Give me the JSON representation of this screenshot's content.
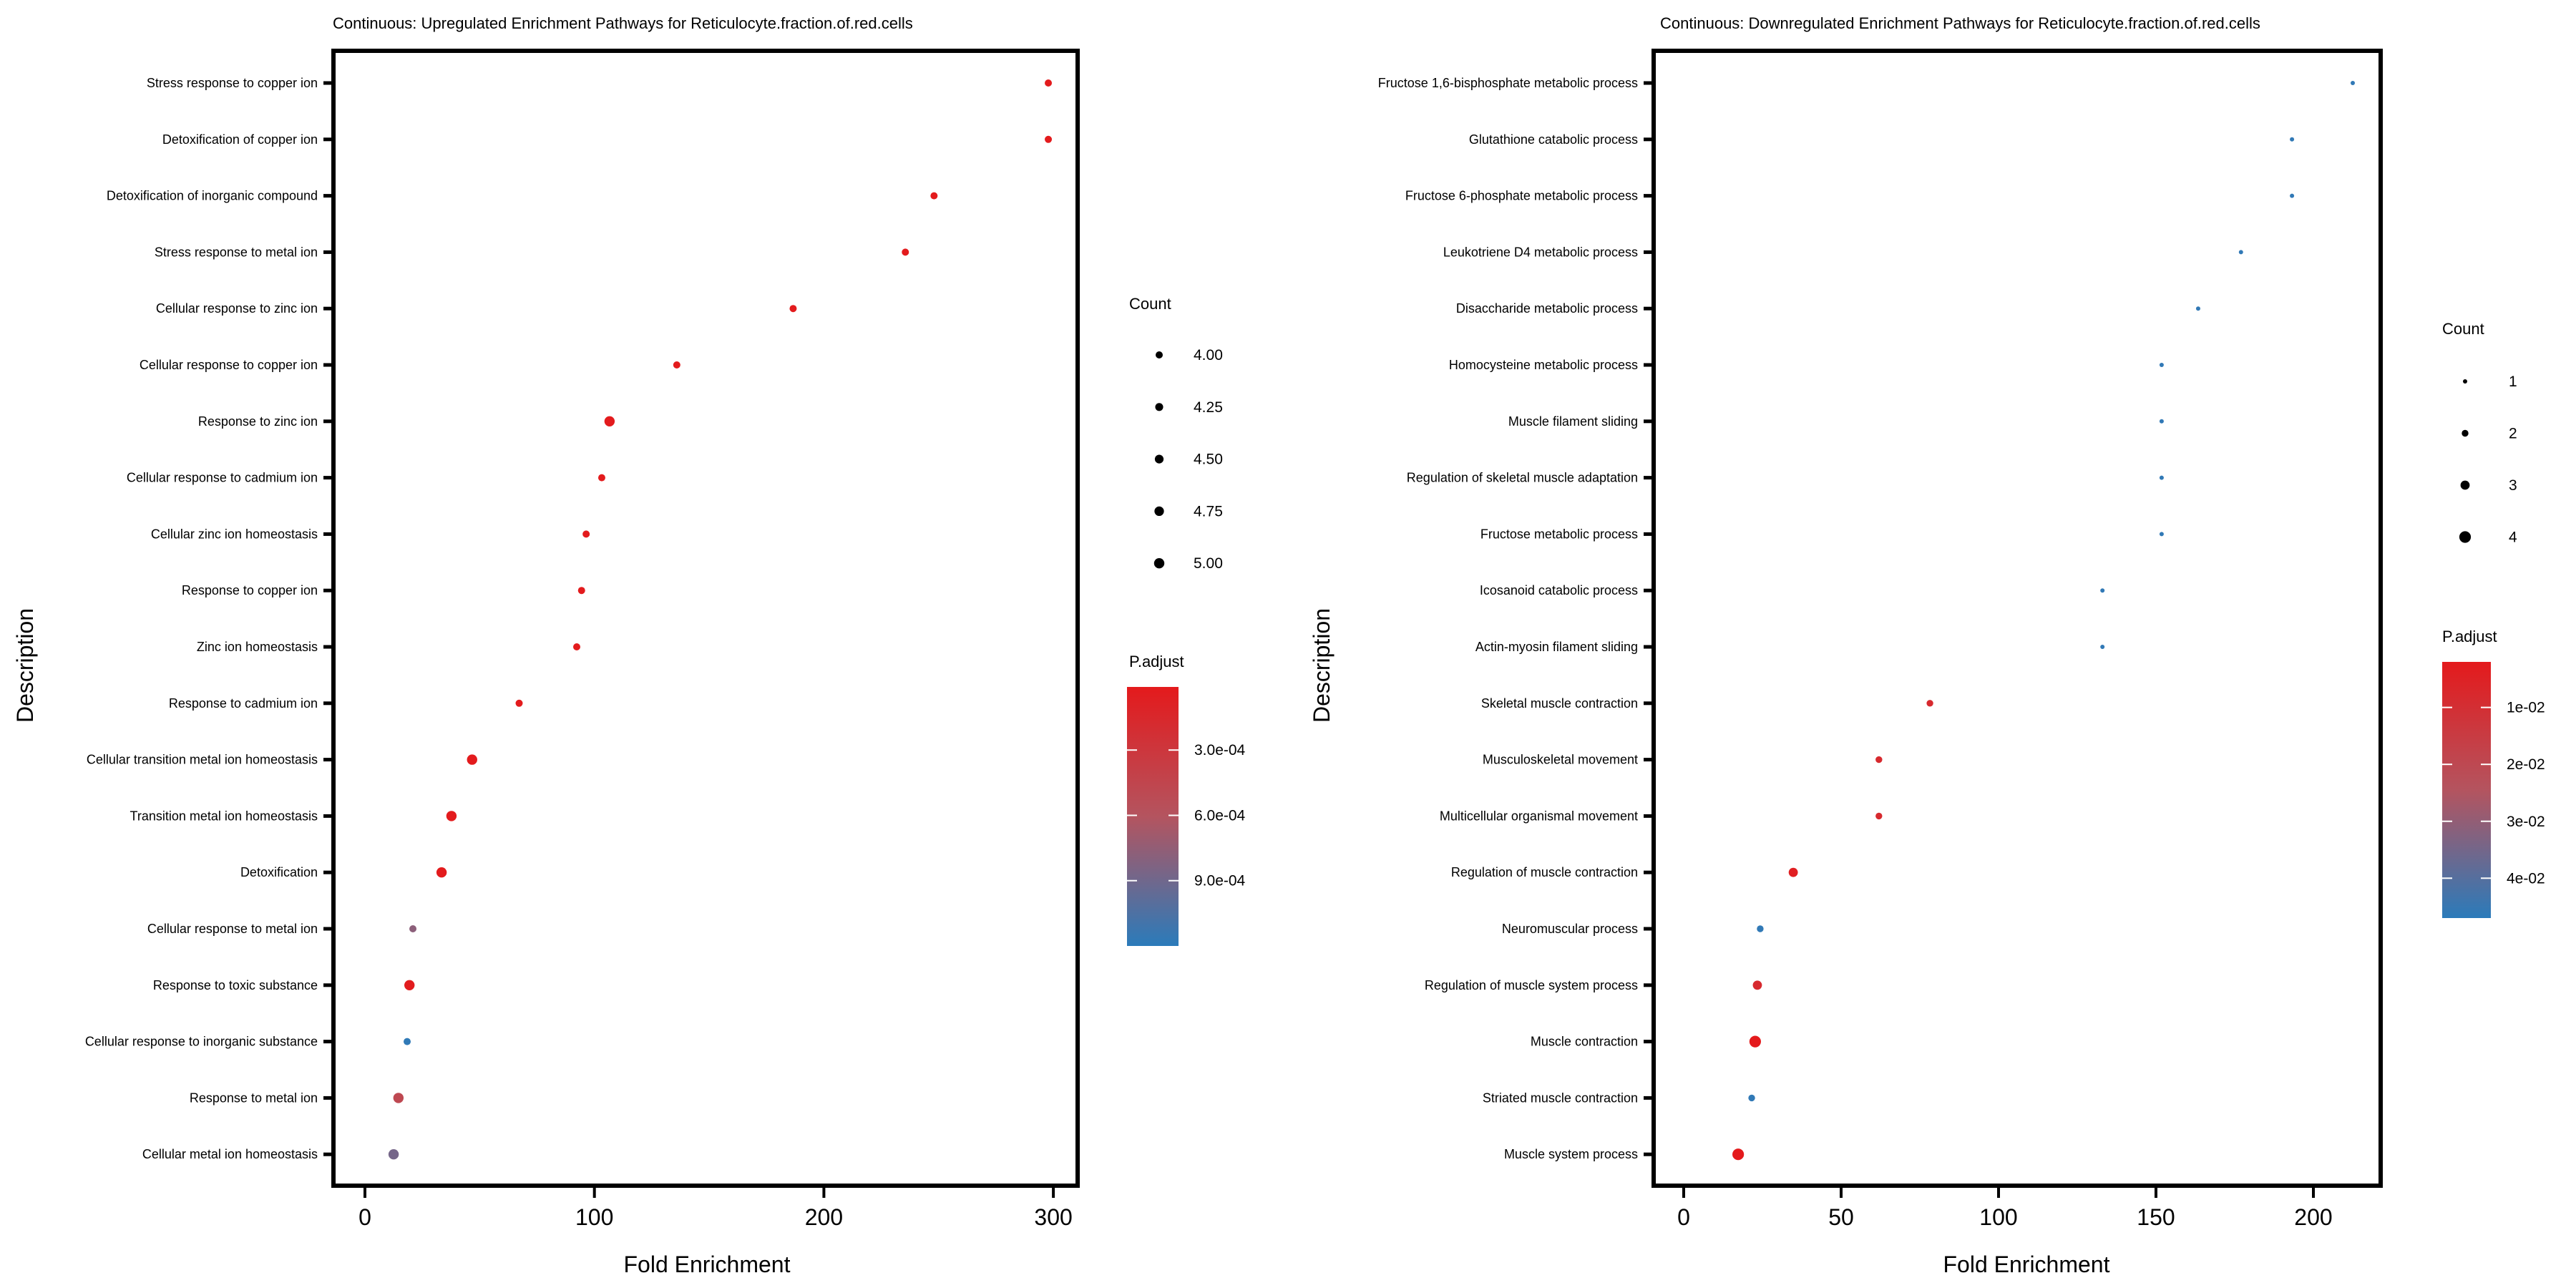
{
  "chart_data": [
    {
      "type": "scatter",
      "subtype": "dotplot",
      "title": "Continuous: Upregulated Enrichment Pathways for Reticulocyte.fraction.of.red.cells",
      "xlabel": "Fold Enrichment",
      "ylabel": "Description",
      "xlim": [
        -14.6,
        310.6
      ],
      "xticks": [
        0,
        100,
        200,
        300
      ],
      "grid": false,
      "legend_position": "right",
      "categories": [
        "Stress response to copper ion",
        "Detoxification of copper ion",
        "Detoxification of inorganic compound",
        "Stress response to metal ion",
        "Cellular response to zinc ion",
        "Cellular response to copper ion",
        "Response to zinc ion",
        "Cellular response to cadmium ion",
        "Cellular zinc ion homeostasis",
        "Response to copper ion",
        "Zinc ion homeostasis",
        "Response to cadmium ion",
        "Cellular transition metal ion homeostasis",
        "Transition metal ion homeostasis",
        "Detoxification",
        "Cellular response to metal ion",
        "Response to toxic substance",
        "Cellular response to inorganic substance",
        "Response to metal ion",
        "Cellular metal ion homeostasis"
      ],
      "x": [
        297.8,
        297.8,
        248.0,
        235.5,
        186.6,
        135.9,
        106.6,
        103.2,
        96.4,
        94.4,
        92.3,
        67.2,
        46.7,
        37.7,
        33.4,
        20.9,
        19.4,
        18.4,
        14.6,
        12.5
      ],
      "count": [
        4,
        4,
        4,
        4,
        4,
        4,
        5,
        4,
        4,
        4,
        4,
        4,
        5,
        5,
        5,
        4,
        5,
        4,
        5,
        5
      ],
      "p_adjust": [
        2e-05,
        2e-05,
        2e-05,
        2e-05,
        2e-05,
        2e-05,
        2e-05,
        2e-05,
        2e-05,
        2e-05,
        2e-05,
        2e-05,
        2e-05,
        2e-05,
        2e-05,
        0.00078,
        3e-05,
        0.00118,
        0.00048,
        0.00088
      ],
      "size_legend": {
        "title": "Count",
        "values": [
          4.0,
          4.25,
          4.5,
          4.75,
          5.0
        ],
        "labels": [
          "4.00",
          "4.25",
          "4.50",
          "4.75",
          "5.00"
        ]
      },
      "color_legend": {
        "title": "P.adjust",
        "range": [
          1e-05,
          0.0012
        ],
        "ticks": [
          0.0003,
          0.0006,
          0.0009
        ],
        "tick_labels": [
          "3.0e-04",
          "6.0e-04",
          "9.0e-04"
        ],
        "low_color": "#e41a1c",
        "high_color": "#2b7bba"
      }
    },
    {
      "type": "scatter",
      "subtype": "dotplot",
      "title": "Continuous: Downregulated Enrichment Pathways for Reticulocyte.fraction.of.red.cells",
      "xlabel": "Fold Enrichment",
      "ylabel": "Description",
      "xlim": [
        -10.2,
        221.4
      ],
      "xticks": [
        0,
        50,
        100,
        150,
        200
      ],
      "grid": false,
      "legend_position": "right",
      "categories": [
        "Fructose 1,6-bisphosphate metabolic process",
        "Glutathione catabolic process",
        "Fructose 6-phosphate metabolic process",
        "Leukotriene D4 metabolic process",
        "Disaccharide metabolic process",
        "Homocysteine metabolic process",
        "Muscle filament sliding",
        "Regulation of skeletal muscle adaptation",
        "Fructose metabolic process",
        "Icosanoid catabolic process",
        "Actin-myosin filament sliding",
        "Skeletal muscle contraction",
        "Musculoskeletal movement",
        "Multicellular organismal movement",
        "Regulation of muscle contraction",
        "Neuromuscular process",
        "Regulation of muscle system process",
        "Muscle contraction",
        "Striated muscle contraction",
        "Muscle system process"
      ],
      "x": [
        212.5,
        193.2,
        193.2,
        177.0,
        163.4,
        151.8,
        151.8,
        151.8,
        151.8,
        133.0,
        133.0,
        78.2,
        62.0,
        62.0,
        34.8,
        24.3,
        23.4,
        22.7,
        21.6,
        17.3
      ],
      "count": [
        1,
        1,
        1,
        1,
        1,
        1,
        1,
        1,
        1,
        1,
        1,
        2,
        2,
        2,
        3,
        2,
        3,
        4,
        2,
        4
      ],
      "p_adjust": [
        0.046,
        0.046,
        0.046,
        0.046,
        0.046,
        0.046,
        0.046,
        0.046,
        0.046,
        0.046,
        0.046,
        0.008,
        0.008,
        0.008,
        0.004,
        0.046,
        0.008,
        0.002,
        0.046,
        0.002
      ],
      "size_legend": {
        "title": "Count",
        "values": [
          1,
          2,
          3,
          4
        ],
        "labels": [
          "1",
          "2",
          "3",
          "4"
        ]
      },
      "color_legend": {
        "title": "P.adjust",
        "range": [
          0.002,
          0.047
        ],
        "ticks": [
          0.01,
          0.02,
          0.03,
          0.04
        ],
        "tick_labels": [
          "1e-02",
          "2e-02",
          "3e-02",
          "4e-02"
        ],
        "low_color": "#e41a1c",
        "high_color": "#2b7bba"
      }
    }
  ]
}
